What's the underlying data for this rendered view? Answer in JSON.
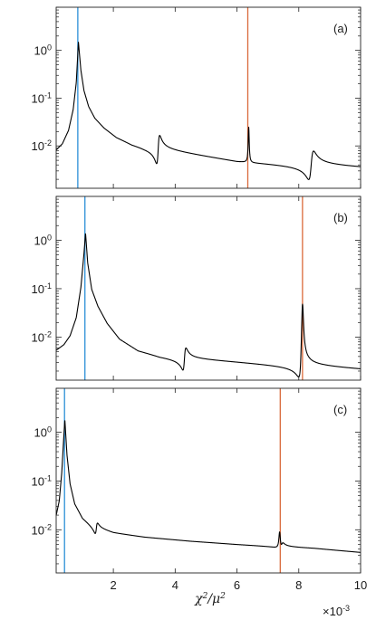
{
  "chart_data": {
    "type": "line",
    "y_scale": "log",
    "xlim": [
      0.15,
      10
    ],
    "ylim": [
      0.0013,
      8
    ],
    "x_tick_values": [
      2,
      4,
      6,
      8,
      10
    ],
    "x_tick_labels": [
      "2",
      "4",
      "6",
      "8",
      "10"
    ],
    "x_multiplier_label": "×10",
    "x_multiplier_exponent": "-3",
    "xlabel_base": "χ",
    "xlabel_sup1": "2",
    "xlabel_mid": "/μ",
    "xlabel_sup2": "2",
    "y_tick_values": [
      1,
      0.1,
      0.01
    ],
    "y_tick_bases": [
      "10",
      "10",
      "10"
    ],
    "y_tick_exponents": [
      "0",
      "-1",
      "-2"
    ],
    "line_color": "#000000",
    "marker_colors": {
      "blue": "#2b8fd6",
      "orange": "#d9693a"
    },
    "panels": [
      {
        "label": "(a)",
        "blue_line_x": 0.85,
        "orange_line_x": 6.35,
        "series": {
          "baseline": [
            [
              0.15,
              0.0085
            ],
            [
              0.35,
              0.0115
            ],
            [
              0.55,
              0.022
            ],
            [
              0.7,
              0.06
            ],
            [
              0.8,
              0.22
            ],
            [
              0.87,
              1.55
            ],
            [
              0.95,
              0.4
            ],
            [
              1.05,
              0.15
            ],
            [
              1.2,
              0.07
            ],
            [
              1.4,
              0.04
            ],
            [
              1.7,
              0.025
            ],
            [
              2.1,
              0.016
            ],
            [
              2.6,
              0.0115
            ],
            [
              3.0,
              0.0098
            ],
            [
              3.35,
              0.0088
            ],
            [
              6.0,
              0.0048
            ],
            [
              8.0,
              0.004
            ],
            [
              10.0,
              0.0034
            ]
          ],
          "features": [
            {
              "x": 3.45,
              "type": "dispersive",
              "amp": 2.0,
              "width": 0.05
            },
            {
              "x": 6.38,
              "type": "peak",
              "amp": 5.5,
              "width": 0.02
            },
            {
              "x": 8.4,
              "type": "dispersive",
              "amp": 2.0,
              "width": 0.08
            }
          ]
        }
      },
      {
        "label": "(b)",
        "blue_line_x": 1.08,
        "orange_line_x": 8.12,
        "series": {
          "baseline": [
            [
              0.15,
              0.0055
            ],
            [
              0.4,
              0.0072
            ],
            [
              0.6,
              0.011
            ],
            [
              0.8,
              0.026
            ],
            [
              0.95,
              0.11
            ],
            [
              1.05,
              0.55
            ],
            [
              1.1,
              1.45
            ],
            [
              1.17,
              0.35
            ],
            [
              1.3,
              0.1
            ],
            [
              1.5,
              0.045
            ],
            [
              1.8,
              0.02
            ],
            [
              2.2,
              0.0095
            ],
            [
              2.8,
              0.0055
            ],
            [
              3.5,
              0.0042
            ],
            [
              4.1,
              0.0037
            ],
            [
              6.0,
              0.0031
            ],
            [
              7.8,
              0.0026
            ],
            [
              10.0,
              0.0021
            ]
          ],
          "features": [
            {
              "x": 4.3,
              "type": "dispersive",
              "amp": 1.7,
              "width": 0.05
            },
            {
              "x": 8.08,
              "type": "dispersive",
              "amp": 2.2,
              "width": 0.06
            },
            {
              "x": 8.12,
              "type": "peak",
              "amp": 9.0,
              "width": 0.04
            }
          ]
        }
      },
      {
        "label": "(c)",
        "blue_line_x": 0.42,
        "orange_line_x": 7.4,
        "series": {
          "baseline": [
            [
              0.15,
              0.02
            ],
            [
              0.25,
              0.04
            ],
            [
              0.33,
              0.15
            ],
            [
              0.39,
              0.7
            ],
            [
              0.43,
              1.9
            ],
            [
              0.5,
              0.35
            ],
            [
              0.6,
              0.09
            ],
            [
              0.75,
              0.035
            ],
            [
              1.0,
              0.018
            ],
            [
              1.4,
              0.011
            ],
            [
              2.0,
              0.0085
            ],
            [
              3.0,
              0.007
            ],
            [
              4.5,
              0.0058
            ],
            [
              6.0,
              0.005
            ],
            [
              7.3,
              0.0045
            ],
            [
              8.5,
              0.0041
            ],
            [
              10.0,
              0.0034
            ]
          ],
          "features": [
            {
              "x": 1.45,
              "type": "dispersive",
              "amp": 1.3,
              "width": 0.04
            },
            {
              "x": 7.38,
              "type": "peak",
              "amp": 2.3,
              "width": 0.03
            },
            {
              "x": 7.45,
              "type": "dispersive",
              "amp": 1.15,
              "width": 0.05
            }
          ]
        }
      }
    ]
  }
}
